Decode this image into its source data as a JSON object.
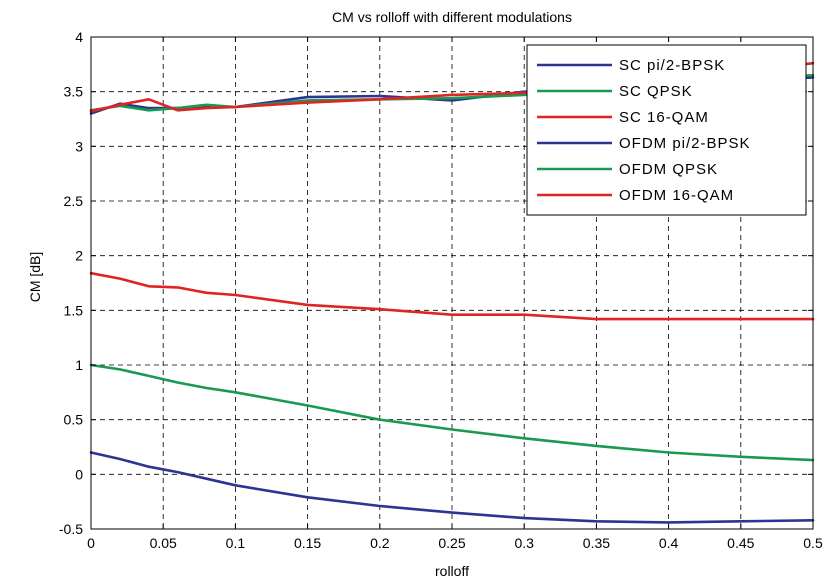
{
  "chart_data": {
    "type": "line",
    "title": "CM vs rolloff with different modulations",
    "xlabel": "rolloff",
    "ylabel": "CM [dB]",
    "xlim": [
      0,
      0.5
    ],
    "ylim": [
      -0.5,
      4
    ],
    "xticks": [
      0,
      0.05,
      0.1,
      0.15,
      0.2,
      0.25,
      0.3,
      0.35,
      0.4,
      0.45,
      0.5
    ],
    "xtick_labels": [
      "0",
      "0.05",
      "0.1",
      "0.15",
      "0.2",
      "0.25",
      "0.3",
      "0.35",
      "0.4",
      "0.45",
      "0.5"
    ],
    "yticks": [
      -0.5,
      0,
      0.5,
      1,
      1.5,
      2,
      2.5,
      3,
      3.5,
      4
    ],
    "ytick_labels": [
      "-0.5",
      "0",
      "0.5",
      "1",
      "1.5",
      "2",
      "2.5",
      "3",
      "3.5",
      "4"
    ],
    "grid": true,
    "legend_position": "top-right",
    "series": [
      {
        "name": "SC pi/2-BPSK",
        "color": "#2b3592",
        "x": [
          0,
          0.02,
          0.04,
          0.06,
          0.08,
          0.1,
          0.15,
          0.2,
          0.25,
          0.3,
          0.35,
          0.4,
          0.45,
          0.5
        ],
        "y": [
          0.2,
          0.14,
          0.07,
          0.02,
          -0.04,
          -0.1,
          -0.21,
          -0.29,
          -0.35,
          -0.4,
          -0.43,
          -0.44,
          -0.43,
          -0.42
        ]
      },
      {
        "name": "SC QPSK",
        "color": "#1a9a50",
        "x": [
          0,
          0.02,
          0.04,
          0.06,
          0.08,
          0.1,
          0.15,
          0.2,
          0.25,
          0.3,
          0.35,
          0.4,
          0.45,
          0.5
        ],
        "y": [
          1.0,
          0.96,
          0.9,
          0.84,
          0.79,
          0.75,
          0.63,
          0.5,
          0.41,
          0.33,
          0.26,
          0.2,
          0.16,
          0.13
        ]
      },
      {
        "name": "SC 16-QAM",
        "color": "#e02424",
        "x": [
          0,
          0.02,
          0.04,
          0.06,
          0.08,
          0.1,
          0.15,
          0.2,
          0.25,
          0.3,
          0.35,
          0.4,
          0.45,
          0.5
        ],
        "y": [
          1.84,
          1.79,
          1.72,
          1.71,
          1.66,
          1.64,
          1.55,
          1.51,
          1.46,
          1.46,
          1.42,
          1.42,
          1.42,
          1.42
        ]
      },
      {
        "name": "OFDM pi/2-BPSK",
        "color": "#2b3592",
        "x": [
          0,
          0.02,
          0.04,
          0.06,
          0.08,
          0.1,
          0.15,
          0.2,
          0.25,
          0.3,
          0.35,
          0.4,
          0.45,
          0.5
        ],
        "y": [
          3.3,
          3.39,
          3.35,
          3.35,
          3.36,
          3.36,
          3.45,
          3.46,
          3.42,
          3.5,
          3.52,
          3.56,
          3.6,
          3.63
        ]
      },
      {
        "name": "OFDM QPSK",
        "color": "#1a9a50",
        "x": [
          0,
          0.02,
          0.04,
          0.06,
          0.08,
          0.1,
          0.15,
          0.2,
          0.25,
          0.3,
          0.35,
          0.4,
          0.45,
          0.5
        ],
        "y": [
          3.33,
          3.37,
          3.33,
          3.35,
          3.38,
          3.36,
          3.42,
          3.43,
          3.44,
          3.47,
          3.53,
          3.58,
          3.62,
          3.65
        ]
      },
      {
        "name": "OFDM 16-QAM",
        "color": "#e02424",
        "x": [
          0,
          0.02,
          0.04,
          0.06,
          0.08,
          0.1,
          0.15,
          0.2,
          0.25,
          0.3,
          0.35,
          0.4,
          0.45,
          0.5
        ],
        "y": [
          3.32,
          3.38,
          3.43,
          3.33,
          3.35,
          3.36,
          3.4,
          3.43,
          3.47,
          3.49,
          3.55,
          3.62,
          3.68,
          3.76
        ]
      }
    ]
  }
}
